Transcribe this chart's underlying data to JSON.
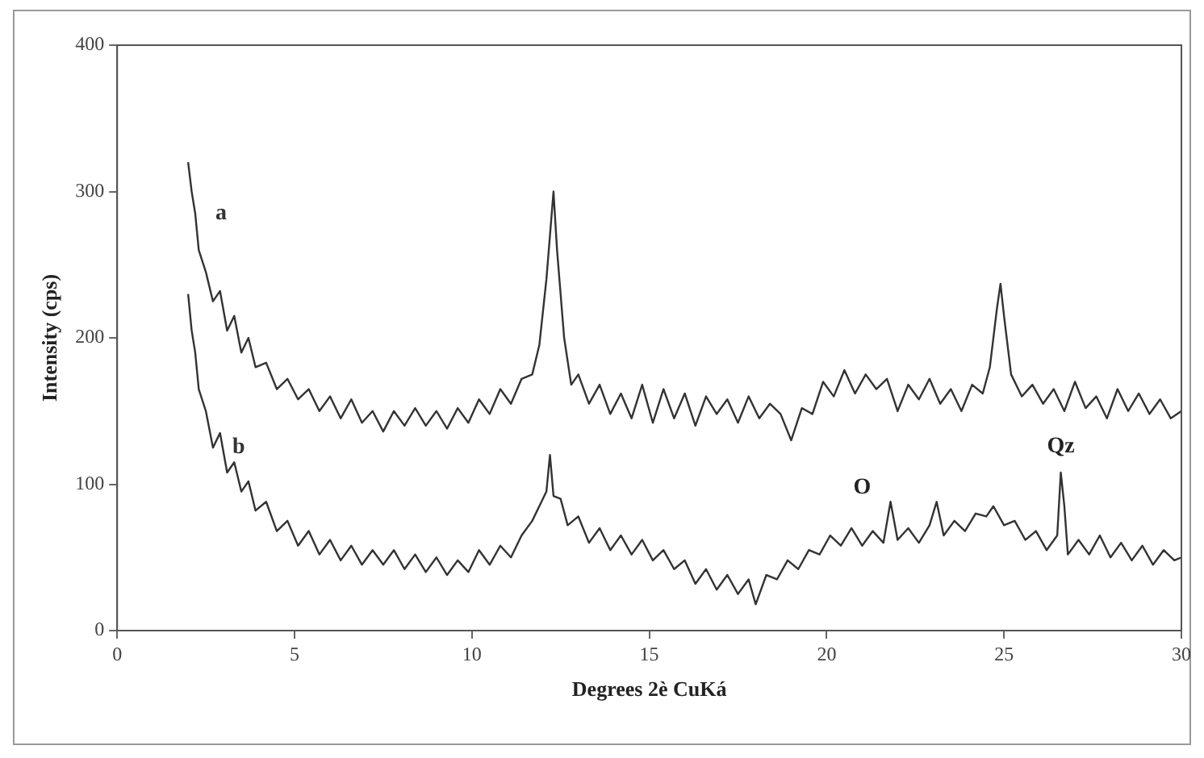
{
  "chart_data": {
    "type": "line",
    "xlabel": "Degrees 2è CuKá",
    "ylabel": "Intensity (cps)",
    "xlim": [
      0,
      30
    ],
    "xticks": [
      0,
      5,
      10,
      15,
      20,
      25,
      30
    ],
    "ylim": [
      0,
      400
    ],
    "yticks": [
      0,
      100,
      200,
      300,
      400
    ],
    "marker": "none",
    "line_style": "solid",
    "annotations": [
      {
        "text": "O",
        "x": 21.0,
        "y": 58
      },
      {
        "text": "Qz",
        "x": 26.6,
        "y": 108
      }
    ],
    "series": [
      {
        "name": "a",
        "color": "#333333",
        "x": [
          2.0,
          2.1,
          2.2,
          2.3,
          2.5,
          2.7,
          2.9,
          3.1,
          3.3,
          3.5,
          3.7,
          3.9,
          4.2,
          4.5,
          4.8,
          5.1,
          5.4,
          5.7,
          6.0,
          6.3,
          6.6,
          6.9,
          7.2,
          7.5,
          7.8,
          8.1,
          8.4,
          8.7,
          9.0,
          9.3,
          9.6,
          9.9,
          10.2,
          10.5,
          10.8,
          11.1,
          11.4,
          11.7,
          11.9,
          12.1,
          12.3,
          12.4,
          12.6,
          12.8,
          13.0,
          13.3,
          13.6,
          13.9,
          14.2,
          14.5,
          14.8,
          15.1,
          15.4,
          15.7,
          16.0,
          16.3,
          16.6,
          16.9,
          17.2,
          17.5,
          17.8,
          18.1,
          18.4,
          18.7,
          19.0,
          19.3,
          19.6,
          19.9,
          20.2,
          20.5,
          20.8,
          21.1,
          21.4,
          21.7,
          22.0,
          22.3,
          22.6,
          22.9,
          23.2,
          23.5,
          23.8,
          24.1,
          24.4,
          24.6,
          24.8,
          24.9,
          25.0,
          25.2,
          25.5,
          25.8,
          26.1,
          26.4,
          26.7,
          27.0,
          27.3,
          27.6,
          27.9,
          28.2,
          28.5,
          28.8,
          29.1,
          29.4,
          29.7,
          30.0
        ],
        "values": [
          320,
          300,
          285,
          260,
          245,
          225,
          232,
          205,
          215,
          190,
          200,
          180,
          183,
          165,
          172,
          158,
          165,
          150,
          160,
          145,
          158,
          142,
          150,
          136,
          150,
          140,
          152,
          140,
          150,
          138,
          152,
          142,
          158,
          148,
          165,
          155,
          172,
          175,
          195,
          240,
          300,
          260,
          200,
          168,
          175,
          155,
          168,
          148,
          162,
          145,
          168,
          142,
          165,
          145,
          162,
          140,
          160,
          148,
          158,
          142,
          160,
          145,
          155,
          148,
          130,
          152,
          148,
          170,
          160,
          178,
          162,
          175,
          165,
          172,
          150,
          168,
          158,
          172,
          155,
          165,
          150,
          168,
          162,
          180,
          220,
          237,
          215,
          175,
          160,
          168,
          155,
          165,
          150,
          170,
          152,
          160,
          145,
          165,
          150,
          162,
          148,
          158,
          145,
          150
        ]
      },
      {
        "name": "b",
        "color": "#333333",
        "x": [
          2.0,
          2.1,
          2.2,
          2.3,
          2.5,
          2.7,
          2.9,
          3.1,
          3.3,
          3.5,
          3.7,
          3.9,
          4.2,
          4.5,
          4.8,
          5.1,
          5.4,
          5.7,
          6.0,
          6.3,
          6.6,
          6.9,
          7.2,
          7.5,
          7.8,
          8.1,
          8.4,
          8.7,
          9.0,
          9.3,
          9.6,
          9.9,
          10.2,
          10.5,
          10.8,
          11.1,
          11.4,
          11.7,
          11.9,
          12.1,
          12.2,
          12.3,
          12.5,
          12.7,
          13.0,
          13.3,
          13.6,
          13.9,
          14.2,
          14.5,
          14.8,
          15.1,
          15.4,
          15.7,
          16.0,
          16.3,
          16.6,
          16.9,
          17.2,
          17.5,
          17.8,
          18.0,
          18.3,
          18.6,
          18.9,
          19.2,
          19.5,
          19.8,
          20.1,
          20.4,
          20.7,
          21.0,
          21.3,
          21.6,
          21.8,
          22.0,
          22.3,
          22.6,
          22.9,
          23.1,
          23.3,
          23.6,
          23.9,
          24.2,
          24.5,
          24.7,
          25.0,
          25.3,
          25.6,
          25.9,
          26.2,
          26.5,
          26.6,
          26.7,
          26.8,
          27.1,
          27.4,
          27.7,
          28.0,
          28.3,
          28.6,
          28.9,
          29.2,
          29.5,
          29.8,
          30.0
        ],
        "values": [
          230,
          205,
          190,
          165,
          150,
          125,
          135,
          108,
          115,
          95,
          102,
          82,
          88,
          68,
          75,
          58,
          68,
          52,
          62,
          48,
          58,
          45,
          55,
          45,
          55,
          42,
          52,
          40,
          50,
          38,
          48,
          40,
          55,
          45,
          58,
          50,
          65,
          75,
          85,
          95,
          120,
          92,
          90,
          72,
          78,
          60,
          70,
          55,
          65,
          52,
          62,
          48,
          55,
          42,
          48,
          32,
          42,
          28,
          38,
          25,
          35,
          18,
          38,
          35,
          48,
          42,
          55,
          52,
          65,
          58,
          70,
          58,
          68,
          60,
          88,
          62,
          70,
          60,
          72,
          88,
          65,
          75,
          68,
          80,
          78,
          85,
          72,
          75,
          62,
          68,
          55,
          65,
          108,
          85,
          52,
          62,
          52,
          65,
          50,
          60,
          48,
          58,
          45,
          55,
          48,
          50
        ]
      }
    ]
  }
}
